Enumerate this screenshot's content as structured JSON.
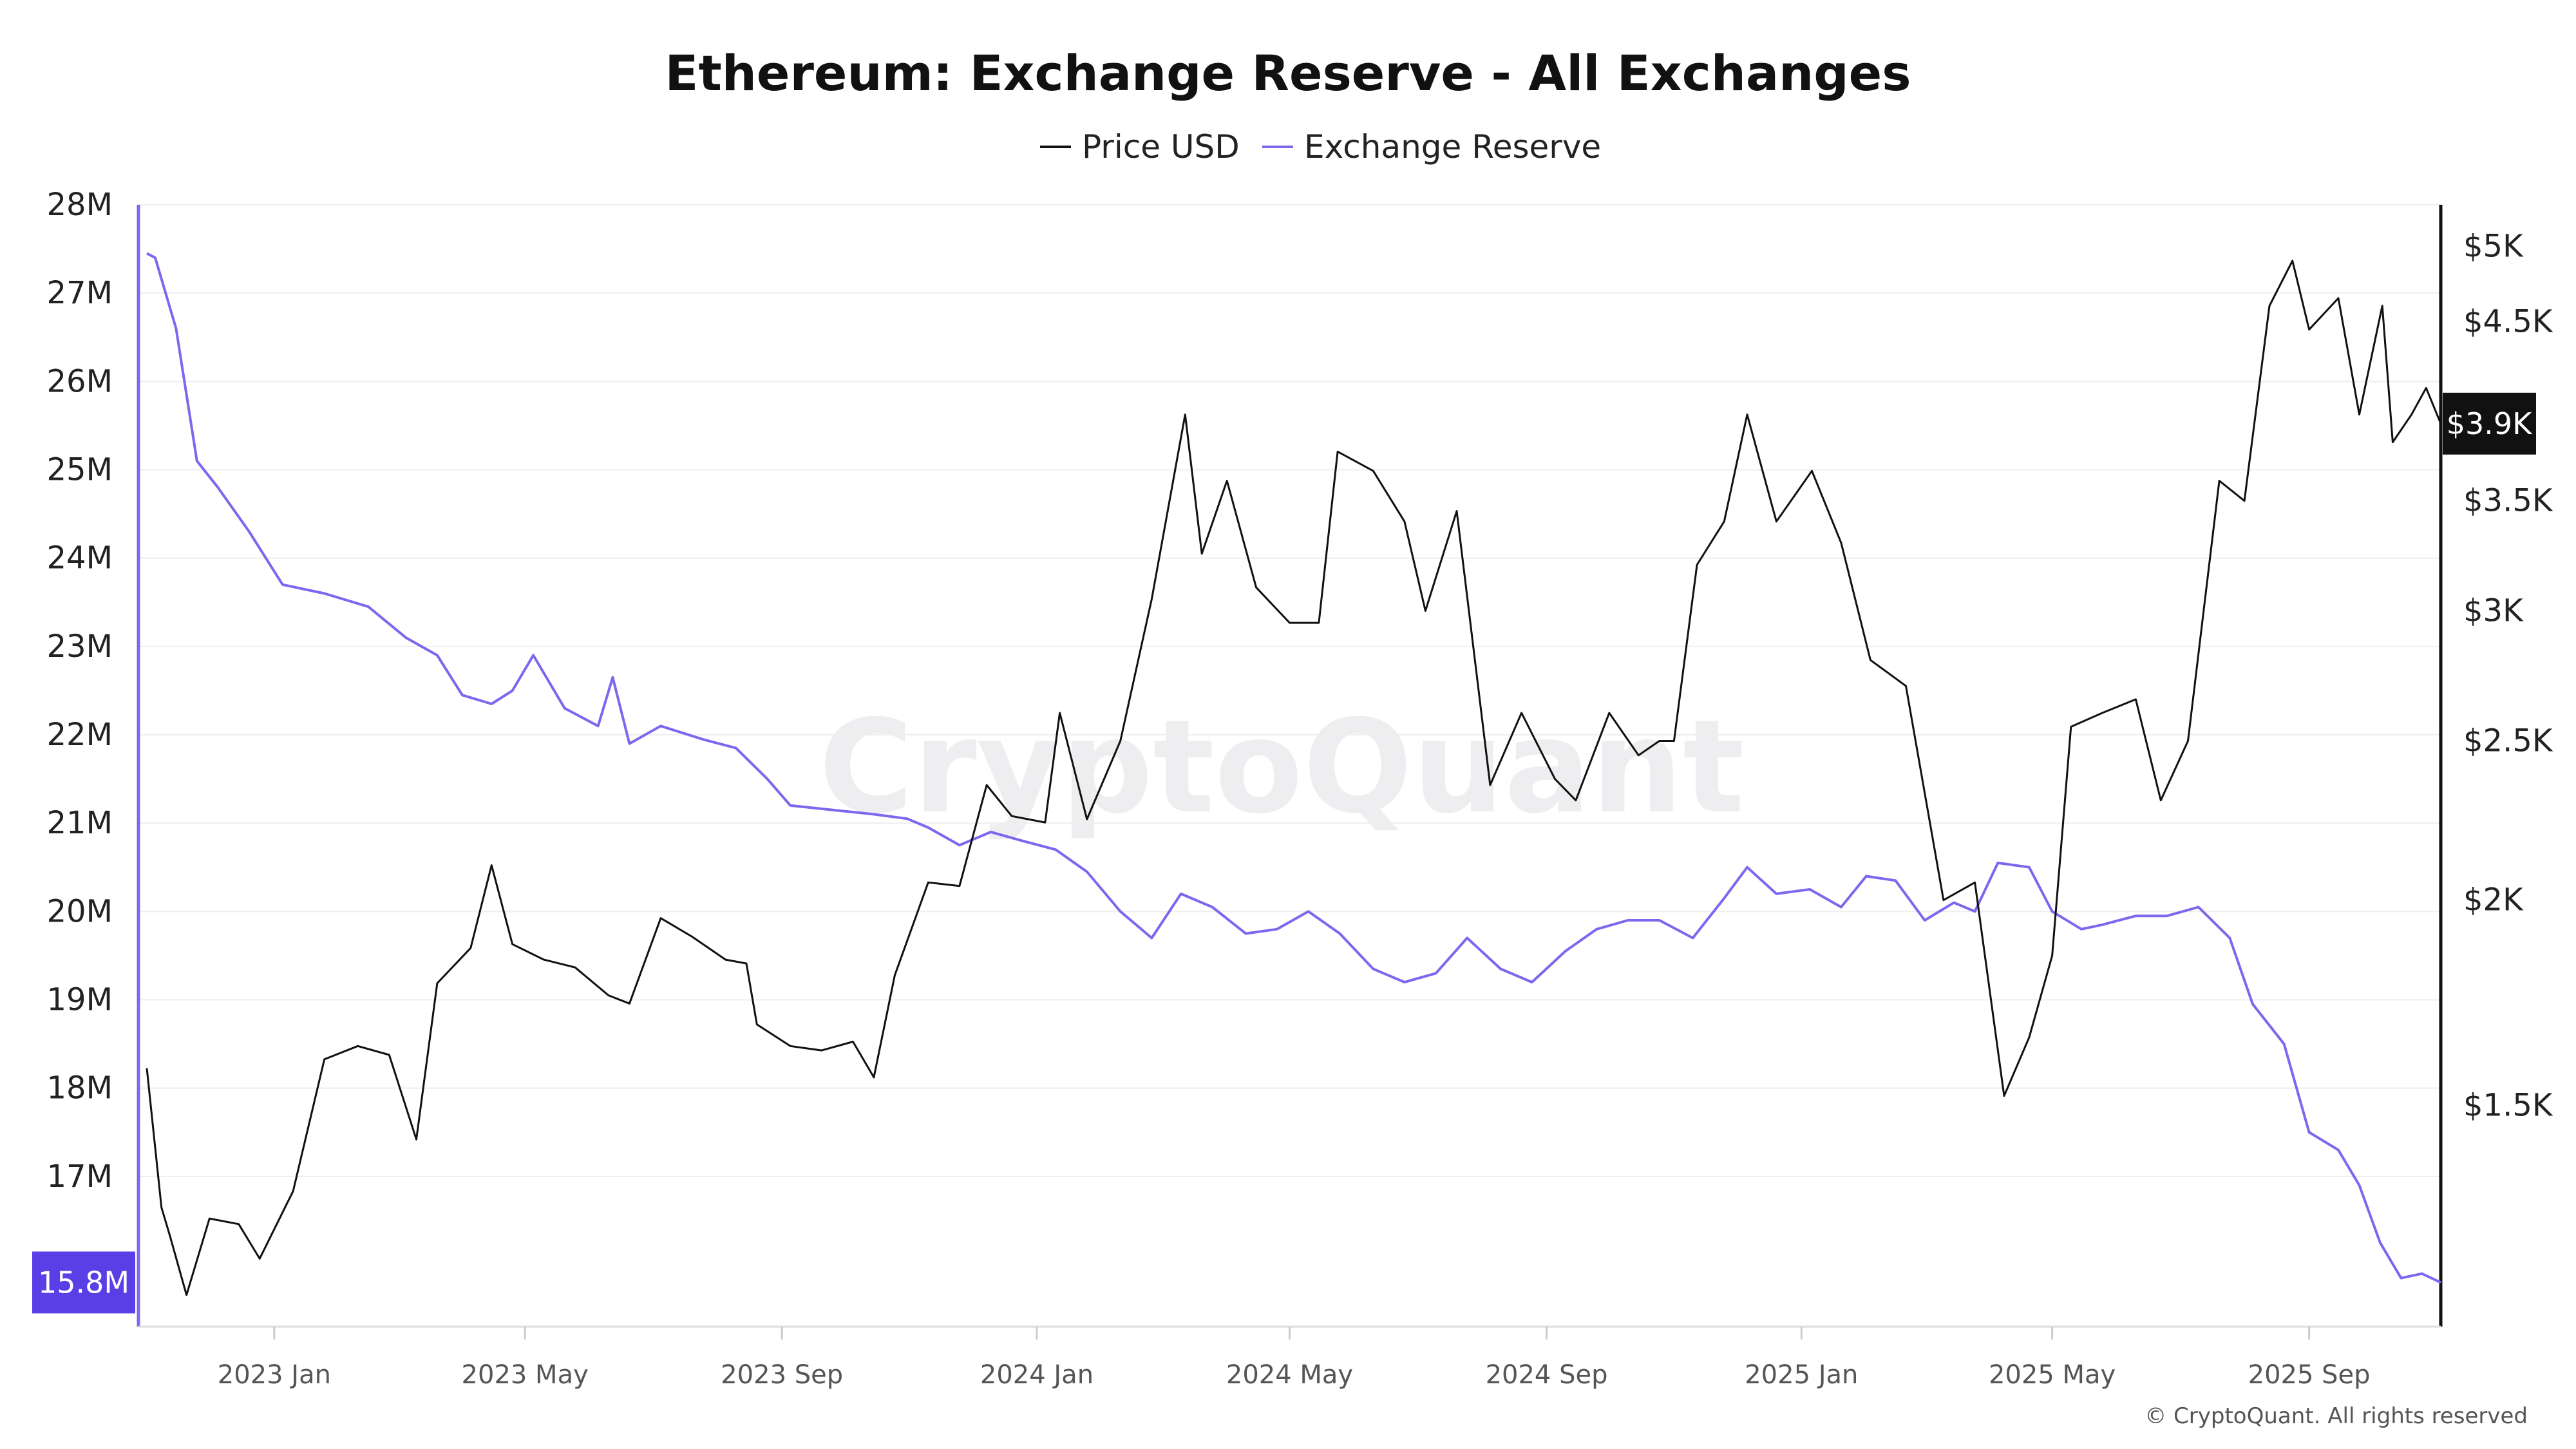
{
  "chart_data": {
    "type": "line",
    "title": "Ethereum: Exchange Reserve - All Exchanges",
    "legend_position": "top-center",
    "grid": true,
    "series": [
      {
        "name": "Price USD",
        "axis": "right",
        "color": "#111111",
        "points": [
          [
            "2022-11-01",
            1580
          ],
          [
            "2022-11-08",
            1300
          ],
          [
            "2022-11-12",
            1250
          ],
          [
            "2022-11-20",
            1150
          ],
          [
            "2022-12-01",
            1280
          ],
          [
            "2022-12-15",
            1270
          ],
          [
            "2022-12-25",
            1210
          ],
          [
            "2023-01-10",
            1330
          ],
          [
            "2023-01-25",
            1600
          ],
          [
            "2023-02-10",
            1630
          ],
          [
            "2023-02-25",
            1610
          ],
          [
            "2023-03-10",
            1430
          ],
          [
            "2023-03-20",
            1780
          ],
          [
            "2023-04-05",
            1870
          ],
          [
            "2023-04-15",
            2100
          ],
          [
            "2023-04-25",
            1880
          ],
          [
            "2023-05-10",
            1840
          ],
          [
            "2023-05-25",
            1820
          ],
          [
            "2023-06-10",
            1750
          ],
          [
            "2023-06-20",
            1730
          ],
          [
            "2023-07-05",
            1950
          ],
          [
            "2023-07-20",
            1900
          ],
          [
            "2023-08-05",
            1840
          ],
          [
            "2023-08-15",
            1830
          ],
          [
            "2023-08-20",
            1680
          ],
          [
            "2023-09-05",
            1630
          ],
          [
            "2023-09-20",
            1620
          ],
          [
            "2023-10-05",
            1640
          ],
          [
            "2023-10-15",
            1560
          ],
          [
            "2023-10-25",
            1800
          ],
          [
            "2023-11-10",
            2050
          ],
          [
            "2023-11-25",
            2040
          ],
          [
            "2023-12-08",
            2350
          ],
          [
            "2023-12-20",
            2250
          ],
          [
            "2024-01-05",
            2230
          ],
          [
            "2024-01-12",
            2600
          ],
          [
            "2024-01-25",
            2240
          ],
          [
            "2024-02-10",
            2500
          ],
          [
            "2024-02-25",
            3050
          ],
          [
            "2024-03-12",
            3950
          ],
          [
            "2024-03-20",
            3250
          ],
          [
            "2024-04-01",
            3600
          ],
          [
            "2024-04-15",
            3100
          ],
          [
            "2024-05-01",
            2950
          ],
          [
            "2024-05-15",
            2950
          ],
          [
            "2024-05-24",
            3750
          ],
          [
            "2024-06-10",
            3650
          ],
          [
            "2024-06-25",
            3400
          ],
          [
            "2024-07-05",
            3000
          ],
          [
            "2024-07-20",
            3450
          ],
          [
            "2024-08-05",
            2350
          ],
          [
            "2024-08-20",
            2600
          ],
          [
            "2024-09-05",
            2370
          ],
          [
            "2024-09-15",
            2300
          ],
          [
            "2024-10-01",
            2600
          ],
          [
            "2024-10-15",
            2450
          ],
          [
            "2024-10-25",
            2500
          ],
          [
            "2024-11-01",
            2500
          ],
          [
            "2024-11-12",
            3200
          ],
          [
            "2024-11-25",
            3400
          ],
          [
            "2024-12-06",
            3950
          ],
          [
            "2024-12-20",
            3400
          ],
          [
            "2025-01-06",
            3650
          ],
          [
            "2025-01-20",
            3300
          ],
          [
            "2025-02-03",
            2800
          ],
          [
            "2025-02-20",
            2700
          ],
          [
            "2025-03-10",
            2000
          ],
          [
            "2025-03-25",
            2050
          ],
          [
            "2025-04-08",
            1520
          ],
          [
            "2025-04-20",
            1650
          ],
          [
            "2025-05-01",
            1850
          ],
          [
            "2025-05-10",
            2550
          ],
          [
            "2025-05-25",
            2600
          ],
          [
            "2025-06-10",
            2650
          ],
          [
            "2025-06-22",
            2300
          ],
          [
            "2025-07-05",
            2500
          ],
          [
            "2025-07-20",
            3600
          ],
          [
            "2025-08-01",
            3500
          ],
          [
            "2025-08-13",
            4600
          ],
          [
            "2025-08-24",
            4900
          ],
          [
            "2025-09-01",
            4450
          ],
          [
            "2025-09-15",
            4650
          ],
          [
            "2025-09-25",
            3950
          ],
          [
            "2025-10-06",
            4600
          ],
          [
            "2025-10-11",
            3800
          ],
          [
            "2025-10-20",
            3950
          ],
          [
            "2025-10-27",
            4100
          ],
          [
            "2025-11-03",
            3900
          ]
        ]
      },
      {
        "name": "Exchange Reserve",
        "axis": "left",
        "color": "#7b68ee",
        "points": [
          [
            "2022-11-01",
            27.45
          ],
          [
            "2022-11-05",
            27.4
          ],
          [
            "2022-11-15",
            26.6
          ],
          [
            "2022-11-25",
            25.1
          ],
          [
            "2022-12-05",
            24.8
          ],
          [
            "2022-12-20",
            24.3
          ],
          [
            "2023-01-05",
            23.7
          ],
          [
            "2023-01-25",
            23.6
          ],
          [
            "2023-02-15",
            23.45
          ],
          [
            "2023-03-05",
            23.1
          ],
          [
            "2023-03-20",
            22.9
          ],
          [
            "2023-04-01",
            22.45
          ],
          [
            "2023-04-15",
            22.35
          ],
          [
            "2023-04-25",
            22.5
          ],
          [
            "2023-05-05",
            22.9
          ],
          [
            "2023-05-20",
            22.3
          ],
          [
            "2023-06-05",
            22.1
          ],
          [
            "2023-06-12",
            22.65
          ],
          [
            "2023-06-20",
            21.9
          ],
          [
            "2023-07-05",
            22.1
          ],
          [
            "2023-07-25",
            21.95
          ],
          [
            "2023-08-10",
            21.85
          ],
          [
            "2023-08-25",
            21.5
          ],
          [
            "2023-09-05",
            21.2
          ],
          [
            "2023-09-25",
            21.15
          ],
          [
            "2023-10-15",
            21.1
          ],
          [
            "2023-10-31",
            21.05
          ],
          [
            "2023-11-10",
            20.95
          ],
          [
            "2023-11-25",
            20.75
          ],
          [
            "2023-12-10",
            20.9
          ],
          [
            "2023-12-25",
            20.8
          ],
          [
            "2024-01-10",
            20.7
          ],
          [
            "2024-01-25",
            20.45
          ],
          [
            "2024-02-10",
            20.0
          ],
          [
            "2024-02-25",
            19.7
          ],
          [
            "2024-03-10",
            20.2
          ],
          [
            "2024-03-25",
            20.05
          ],
          [
            "2024-04-10",
            19.75
          ],
          [
            "2024-04-25",
            19.8
          ],
          [
            "2024-05-10",
            20.0
          ],
          [
            "2024-05-25",
            19.75
          ],
          [
            "2024-06-10",
            19.35
          ],
          [
            "2024-06-25",
            19.2
          ],
          [
            "2024-07-10",
            19.3
          ],
          [
            "2024-07-25",
            19.7
          ],
          [
            "2024-08-10",
            19.35
          ],
          [
            "2024-08-25",
            19.2
          ],
          [
            "2024-09-10",
            19.55
          ],
          [
            "2024-09-25",
            19.8
          ],
          [
            "2024-10-10",
            19.9
          ],
          [
            "2024-10-25",
            19.9
          ],
          [
            "2024-11-10",
            19.7
          ],
          [
            "2024-11-25",
            20.15
          ],
          [
            "2024-12-06",
            20.5
          ],
          [
            "2024-12-20",
            20.2
          ],
          [
            "2025-01-05",
            20.25
          ],
          [
            "2025-01-20",
            20.05
          ],
          [
            "2025-02-01",
            20.4
          ],
          [
            "2025-02-15",
            20.35
          ],
          [
            "2025-03-01",
            19.9
          ],
          [
            "2025-03-15",
            20.1
          ],
          [
            "2025-03-25",
            20.0
          ],
          [
            "2025-04-05",
            20.55
          ],
          [
            "2025-04-20",
            20.5
          ],
          [
            "2025-05-01",
            20.0
          ],
          [
            "2025-05-15",
            19.8
          ],
          [
            "2025-05-25",
            19.85
          ],
          [
            "2025-06-10",
            19.95
          ],
          [
            "2025-06-25",
            19.95
          ],
          [
            "2025-07-10",
            20.05
          ],
          [
            "2025-07-25",
            19.7
          ],
          [
            "2025-08-05",
            18.95
          ],
          [
            "2025-08-20",
            18.5
          ],
          [
            "2025-09-01",
            17.5
          ],
          [
            "2025-09-15",
            17.3
          ],
          [
            "2025-09-25",
            16.9
          ],
          [
            "2025-10-05",
            16.25
          ],
          [
            "2025-10-15",
            15.85
          ],
          [
            "2025-10-25",
            15.9
          ],
          [
            "2025-11-03",
            15.8
          ]
        ]
      }
    ],
    "x_axis": {
      "type": "date",
      "range": [
        "2022-10-28",
        "2025-11-03"
      ],
      "ticks": [
        {
          "date": "2023-01-01",
          "label": "2023 Jan"
        },
        {
          "date": "2023-05-01",
          "label": "2023 May"
        },
        {
          "date": "2023-09-01",
          "label": "2023 Sep"
        },
        {
          "date": "2024-01-01",
          "label": "2024 Jan"
        },
        {
          "date": "2024-05-01",
          "label": "2024 May"
        },
        {
          "date": "2024-09-01",
          "label": "2024 Sep"
        },
        {
          "date": "2025-01-01",
          "label": "2025 Jan"
        },
        {
          "date": "2025-05-01",
          "label": "2025 May"
        },
        {
          "date": "2025-09-01",
          "label": "2025 Sep"
        }
      ]
    },
    "y_left": {
      "unit": "M",
      "range": [
        15.3,
        28
      ],
      "ticks": [
        {
          "value": 17,
          "label": "17M"
        },
        {
          "value": 18,
          "label": "18M"
        },
        {
          "value": 19,
          "label": "19M"
        },
        {
          "value": 20,
          "label": "20M"
        },
        {
          "value": 21,
          "label": "21M"
        },
        {
          "value": 22,
          "label": "22M"
        },
        {
          "value": 23,
          "label": "23M"
        },
        {
          "value": 24,
          "label": "24M"
        },
        {
          "value": 25,
          "label": "25M"
        },
        {
          "value": 26,
          "label": "26M"
        },
        {
          "value": 27,
          "label": "27M"
        },
        {
          "value": 28,
          "label": "28M"
        }
      ],
      "current_value": 15.8,
      "current_label": "15.8M"
    },
    "y_right": {
      "scale": "log",
      "range": [
        1100,
        5300
      ],
      "ticks": [
        {
          "value": 1500,
          "label": "$1.5K"
        },
        {
          "value": 2000,
          "label": "$2K"
        },
        {
          "value": 2500,
          "label": "$2.5K"
        },
        {
          "value": 3000,
          "label": "$3K"
        },
        {
          "value": 3500,
          "label": "$3.5K"
        },
        {
          "value": 4500,
          "label": "$4.5K"
        },
        {
          "value": 5000,
          "label": "$5K"
        }
      ],
      "current_value": 3900,
      "current_label": "$3.9K"
    }
  },
  "watermark": "CryptoQuant",
  "copyright": "© CryptoQuant. All rights reserved"
}
